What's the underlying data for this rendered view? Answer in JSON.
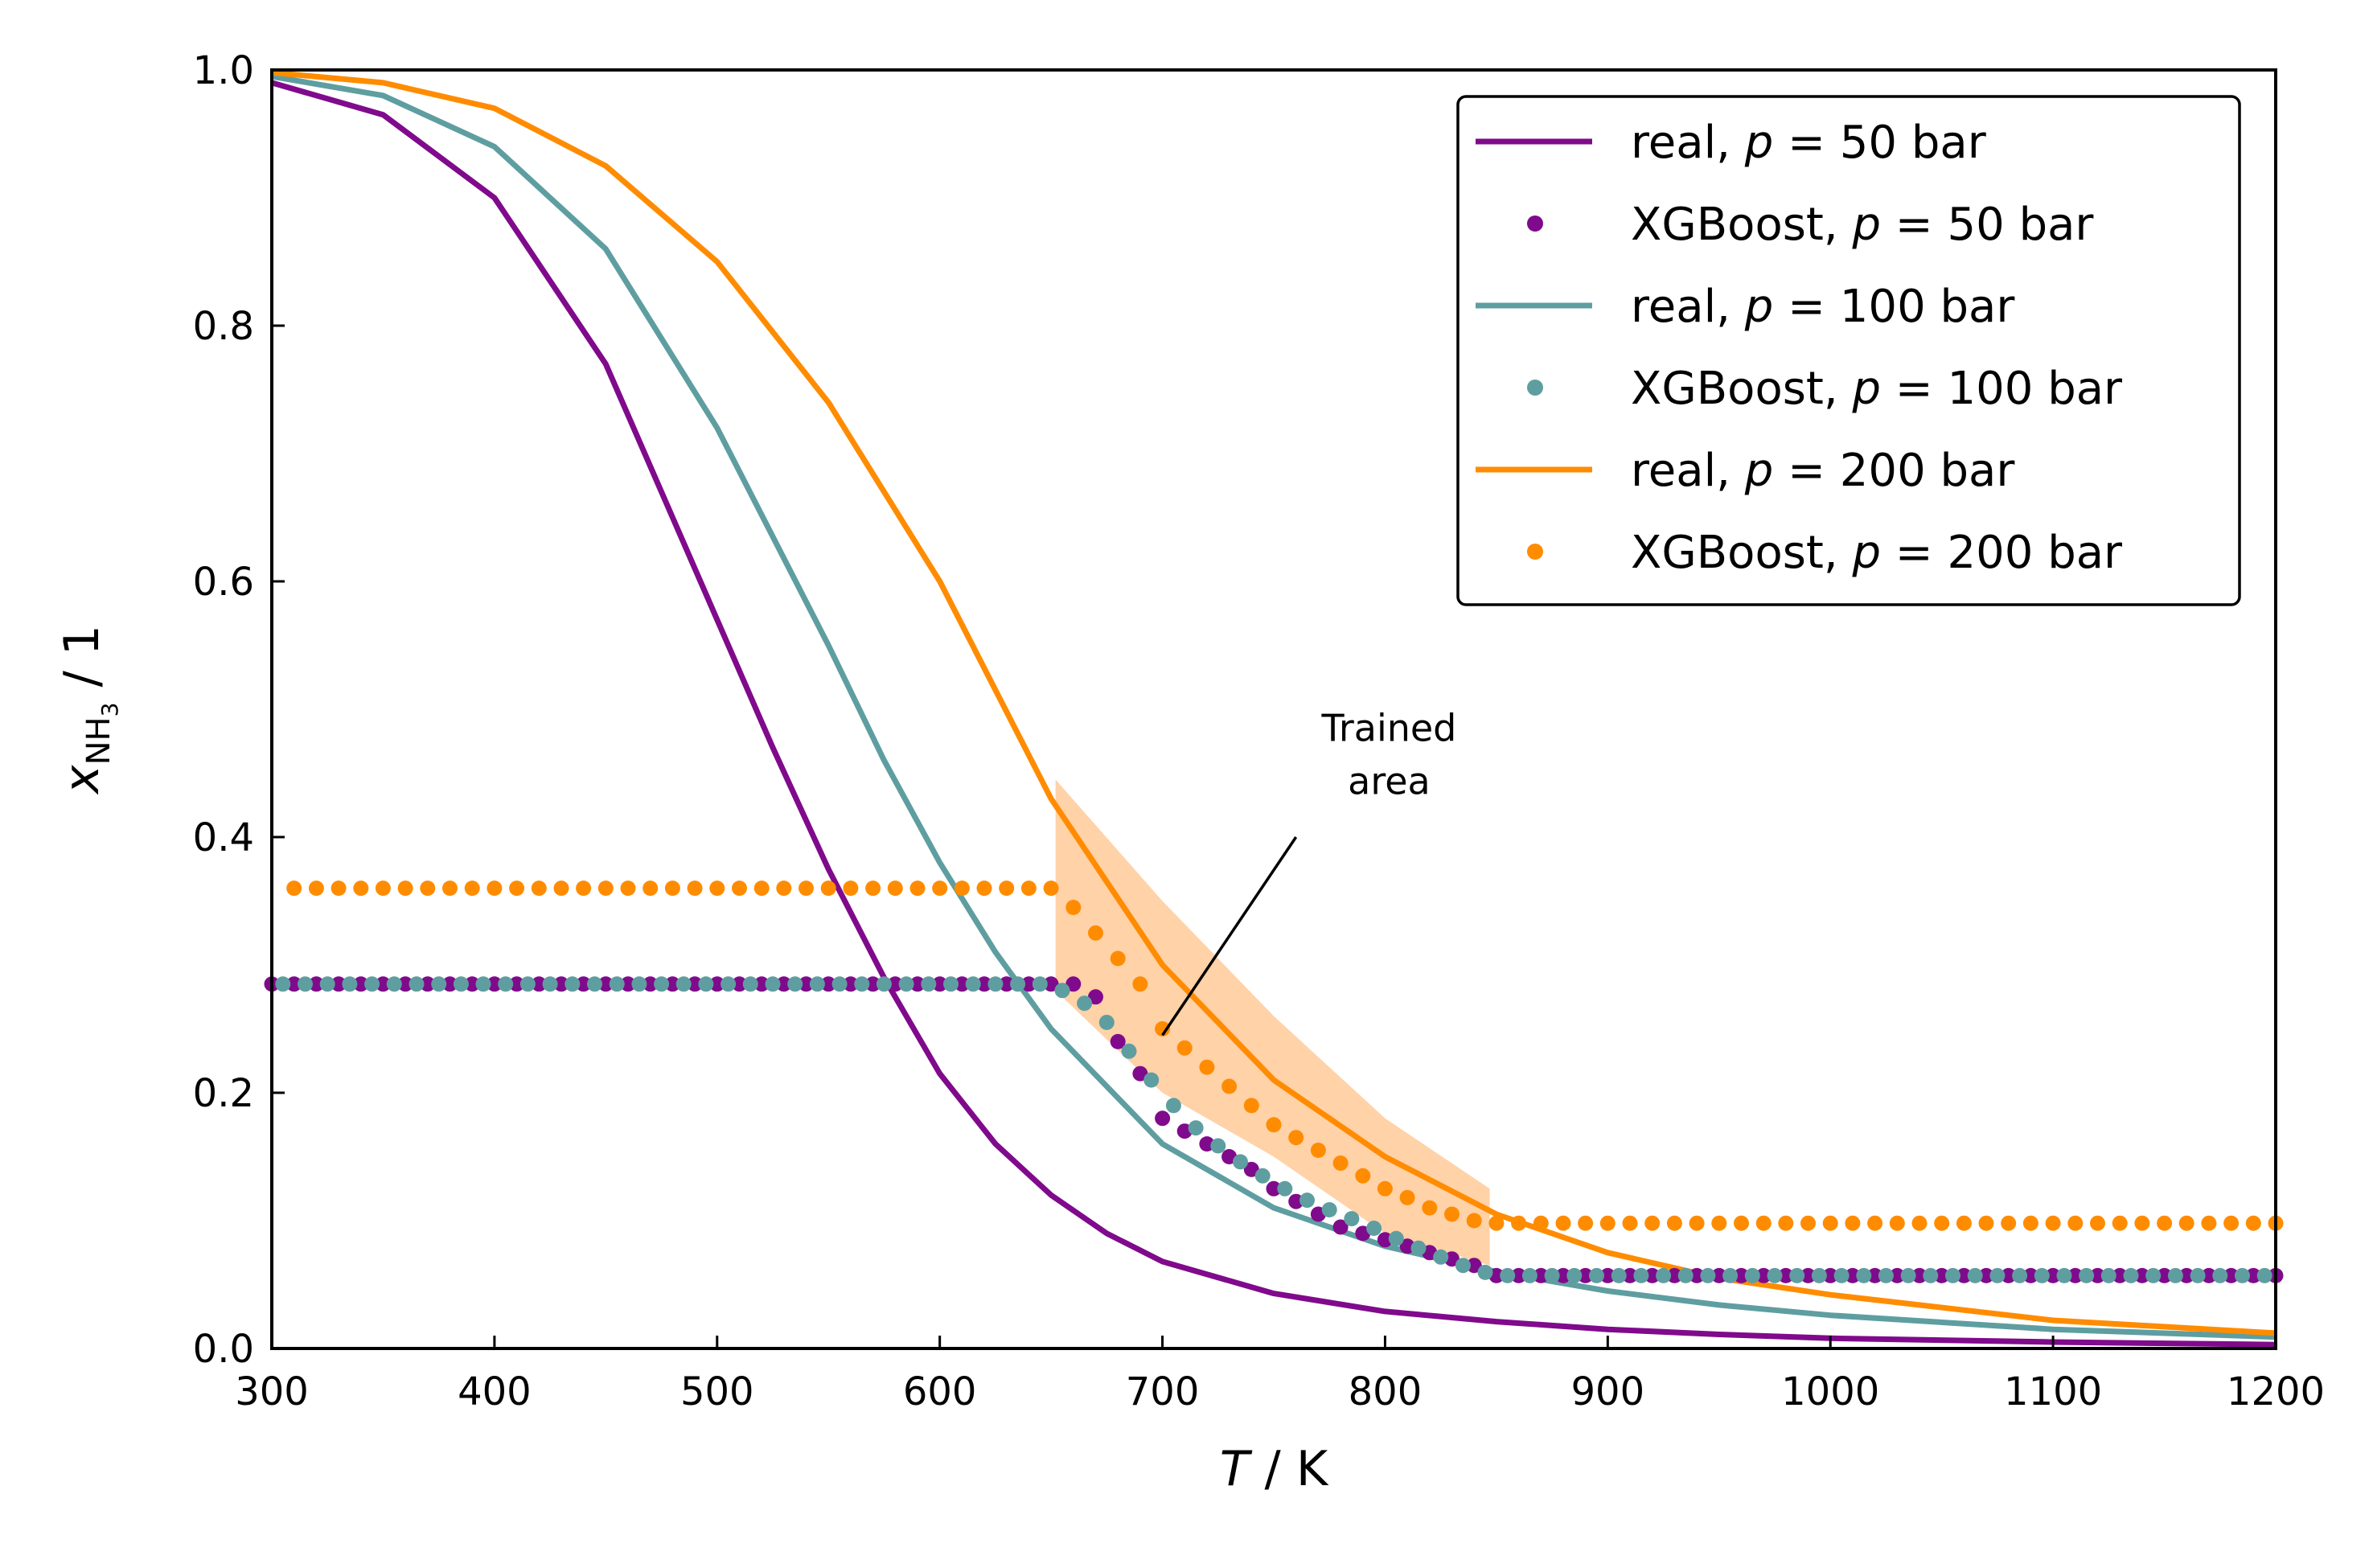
{
  "chart_data": {
    "type": "line",
    "xlabel": {
      "var": "T",
      "unit": " / K"
    },
    "ylabel": {
      "var": "x",
      "sub": "NH",
      "subsub": "3",
      "unit": " / 1"
    },
    "xlim": [
      300,
      1200
    ],
    "ylim": [
      0.0,
      1.0
    ],
    "xticks": [
      300,
      400,
      500,
      600,
      700,
      800,
      900,
      1000,
      1100,
      1200
    ],
    "yticks": [
      0.0,
      0.2,
      0.4,
      0.6,
      0.8,
      1.0
    ],
    "grid": false,
    "legend_position": "top-right",
    "colors": {
      "p50": "#800a8c",
      "p100": "#5f9ea0",
      "p200": "#ff8c00",
      "band": "#ffd2a8"
    },
    "series": [
      {
        "name": "real, p = 50 bar",
        "label_pre": "real, ",
        "label_post": " = 50 bar",
        "kind": "line",
        "color": "#800a8c",
        "x": [
          300,
          350,
          400,
          450,
          500,
          525,
          550,
          575,
          600,
          625,
          650,
          675,
          700,
          750,
          800,
          850,
          900,
          950,
          1000,
          1100,
          1200
        ],
        "y": [
          0.99,
          0.965,
          0.9,
          0.77,
          0.57,
          0.47,
          0.375,
          0.29,
          0.215,
          0.16,
          0.12,
          0.09,
          0.068,
          0.043,
          0.029,
          0.021,
          0.015,
          0.011,
          0.008,
          0.005,
          0.003
        ]
      },
      {
        "name": "XGBoost, p = 50 bar",
        "label_pre": "XGBoost, ",
        "label_post": " = 50 bar",
        "kind": "dots",
        "color": "#800a8c",
        "x": [
          300,
          650,
          660,
          670,
          680,
          690,
          700,
          710,
          720,
          730,
          740,
          750,
          760,
          770,
          780,
          790,
          800,
          810,
          820,
          830,
          840,
          850,
          1200
        ],
        "y": [
          0.285,
          0.285,
          0.285,
          0.275,
          0.24,
          0.215,
          0.18,
          0.17,
          0.16,
          0.15,
          0.14,
          0.125,
          0.115,
          0.105,
          0.095,
          0.09,
          0.085,
          0.08,
          0.075,
          0.07,
          0.065,
          0.057,
          0.057
        ]
      },
      {
        "name": "real, p = 100 bar",
        "label_pre": "real, ",
        "label_post": " = 100 bar",
        "kind": "line",
        "color": "#5f9ea0",
        "x": [
          300,
          350,
          400,
          450,
          500,
          550,
          575,
          600,
          625,
          650,
          700,
          750,
          800,
          850,
          900,
          950,
          1000,
          1100,
          1200
        ],
        "y": [
          0.995,
          0.98,
          0.94,
          0.86,
          0.72,
          0.55,
          0.46,
          0.38,
          0.31,
          0.25,
          0.16,
          0.11,
          0.08,
          0.06,
          0.045,
          0.034,
          0.026,
          0.015,
          0.009
        ]
      },
      {
        "name": "XGBoost, p = 100 bar",
        "label_pre": "XGBoost, ",
        "label_post": " = 100 bar",
        "kind": "dots",
        "color": "#5f9ea0",
        "x": [
          300,
          650,
          660,
          670,
          680,
          690,
          700,
          710,
          720,
          730,
          740,
          750,
          760,
          770,
          780,
          790,
          800,
          810,
          820,
          830,
          840,
          850,
          1200
        ],
        "y": [
          0.285,
          0.285,
          0.275,
          0.265,
          0.245,
          0.22,
          0.2,
          0.18,
          0.165,
          0.152,
          0.14,
          0.13,
          0.12,
          0.112,
          0.105,
          0.098,
          0.09,
          0.082,
          0.075,
          0.068,
          0.062,
          0.057,
          0.057
        ]
      },
      {
        "name": "real, p = 200 bar",
        "label_pre": "real, ",
        "label_post": " = 200 bar",
        "kind": "line",
        "color": "#ff8c00",
        "x": [
          300,
          350,
          400,
          450,
          500,
          550,
          600,
          650,
          700,
          750,
          800,
          850,
          900,
          950,
          1000,
          1100,
          1200
        ],
        "y": [
          0.998,
          0.99,
          0.97,
          0.925,
          0.85,
          0.74,
          0.6,
          0.43,
          0.3,
          0.21,
          0.15,
          0.105,
          0.075,
          0.055,
          0.042,
          0.022,
          0.012
        ]
      },
      {
        "name": "XGBoost, p = 200 bar",
        "label_pre": "XGBoost, ",
        "label_post": " = 200 bar",
        "kind": "dots",
        "color": "#ff8c00",
        "x": [
          300,
          650,
          660,
          670,
          680,
          690,
          700,
          710,
          720,
          730,
          740,
          750,
          760,
          770,
          780,
          790,
          800,
          810,
          820,
          830,
          840,
          850,
          1200
        ],
        "y": [
          0.36,
          0.36,
          0.345,
          0.325,
          0.305,
          0.285,
          0.25,
          0.235,
          0.22,
          0.205,
          0.19,
          0.175,
          0.165,
          0.155,
          0.145,
          0.135,
          0.125,
          0.118,
          0.11,
          0.105,
          0.1,
          0.098,
          0.098
        ]
      }
    ],
    "trained_band": {
      "x": [
        652,
        700,
        750,
        800,
        847
      ],
      "lower": [
        0.28,
        0.2,
        0.15,
        0.09,
        0.065
      ],
      "upper": [
        0.445,
        0.35,
        0.26,
        0.18,
        0.125
      ]
    },
    "annotation": {
      "lines": [
        "Trained",
        "area"
      ],
      "text_at": [
        800,
        0.43
      ],
      "arrow_from": [
        760,
        0.4
      ],
      "arrow_to": [
        700,
        0.245
      ]
    }
  }
}
